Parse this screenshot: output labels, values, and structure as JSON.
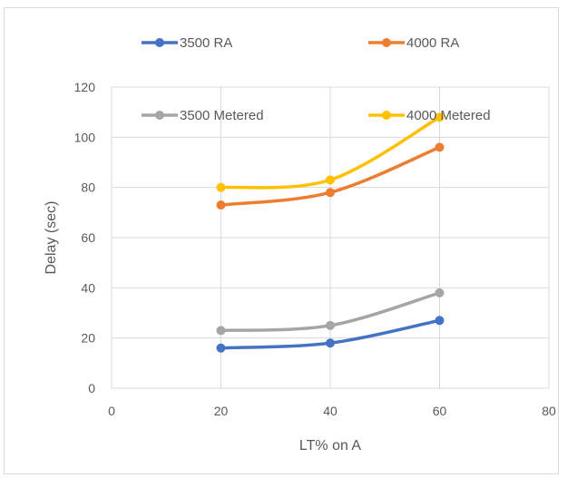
{
  "chart_data": {
    "type": "line",
    "title": "",
    "xlabel": "LT% on A",
    "ylabel": "Delay (sec)",
    "x": [
      20,
      40,
      60
    ],
    "xlim": [
      0,
      80
    ],
    "ylim": [
      0,
      120
    ],
    "x_ticks": [
      0,
      20,
      40,
      60,
      80
    ],
    "y_ticks": [
      0,
      20,
      40,
      60,
      80,
      100,
      120
    ],
    "grid": "horizontal and vertical",
    "legend_position": "top",
    "smooth": true,
    "series": [
      {
        "name": "3500 RA",
        "values": [
          16,
          18,
          27
        ],
        "color": "#4472c4"
      },
      {
        "name": "4000 RA",
        "values": [
          73,
          78,
          96
        ],
        "color": "#ed7d31"
      },
      {
        "name": "3500 Metered",
        "values": [
          23,
          25,
          38
        ],
        "color": "#a5a5a5"
      },
      {
        "name": "4000 Metered",
        "values": [
          80,
          83,
          108
        ],
        "color": "#ffc000"
      }
    ]
  }
}
